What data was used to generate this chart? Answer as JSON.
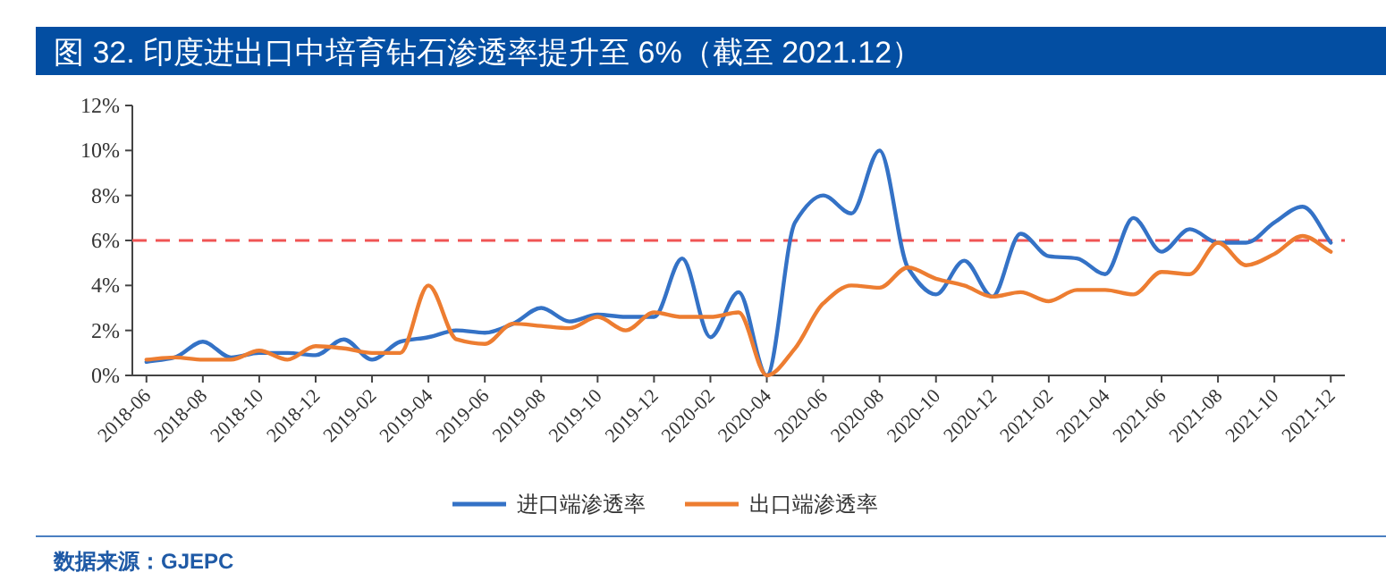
{
  "chart_data": {
    "type": "line",
    "title": "图 32. 印度进出口中培育钻石渗透率提升至 6%（截至 2021.12）",
    "categories": [
      "2018-06",
      null,
      "2018-08",
      null,
      "2018-10",
      null,
      "2018-12",
      null,
      "2019-02",
      null,
      "2019-04",
      null,
      "2019-06",
      null,
      "2019-08",
      null,
      "2019-10",
      null,
      "2019-12",
      null,
      "2020-02",
      null,
      "2020-04",
      null,
      "2020-06",
      null,
      "2020-08",
      null,
      "2020-10",
      null,
      "2020-12",
      null,
      "2021-02",
      null,
      "2021-04",
      null,
      "2021-06",
      null,
      "2021-08",
      null,
      "2021-10",
      null,
      "2021-12"
    ],
    "series": [
      {
        "name": "进口端渗透率",
        "color": "#3472c6",
        "values": [
          0.6,
          0.8,
          1.5,
          0.8,
          1.0,
          1.0,
          0.9,
          1.6,
          0.7,
          1.5,
          1.7,
          2.0,
          1.9,
          2.3,
          3.0,
          2.4,
          2.7,
          2.6,
          2.6,
          5.2,
          1.7,
          3.7,
          0.0,
          6.8,
          8.0,
          7.2,
          10.0,
          4.8,
          3.6,
          5.1,
          3.5,
          6.3,
          5.3,
          5.2,
          4.5,
          7.0,
          5.5,
          6.5,
          5.9,
          5.9,
          6.8,
          7.5,
          5.9
        ]
      },
      {
        "name": "出口端渗透率",
        "color": "#ed7d31",
        "values": [
          0.7,
          0.8,
          0.7,
          0.7,
          1.1,
          0.7,
          1.3,
          1.2,
          1.0,
          1.0,
          4.0,
          1.6,
          1.4,
          2.3,
          2.2,
          2.1,
          2.6,
          2.0,
          2.8,
          2.6,
          2.6,
          2.8,
          0.0,
          1.2,
          3.2,
          4.0,
          3.9,
          4.8,
          4.3,
          4.0,
          3.5,
          3.7,
          3.3,
          3.8,
          3.8,
          3.6,
          4.6,
          4.5,
          5.9,
          4.9,
          5.4,
          6.2,
          5.5
        ]
      }
    ],
    "ylim": [
      0,
      12
    ],
    "yticks": [
      {
        "value": 0,
        "label": "0%"
      },
      {
        "value": 2,
        "label": "2%"
      },
      {
        "value": 4,
        "label": "4%"
      },
      {
        "value": 6,
        "label": "6%"
      },
      {
        "value": 8,
        "label": "8%"
      },
      {
        "value": 10,
        "label": "10%"
      },
      {
        "value": 12,
        "label": "12%"
      }
    ],
    "ref_lines": [
      {
        "axis": "y",
        "value": 6,
        "color": "#f05454",
        "line_style": "dashed"
      }
    ],
    "legend": "bottom",
    "grid": false,
    "marker": "none",
    "line_style": "solid",
    "annotations": [
      "数据来源：GJEPC"
    ]
  }
}
